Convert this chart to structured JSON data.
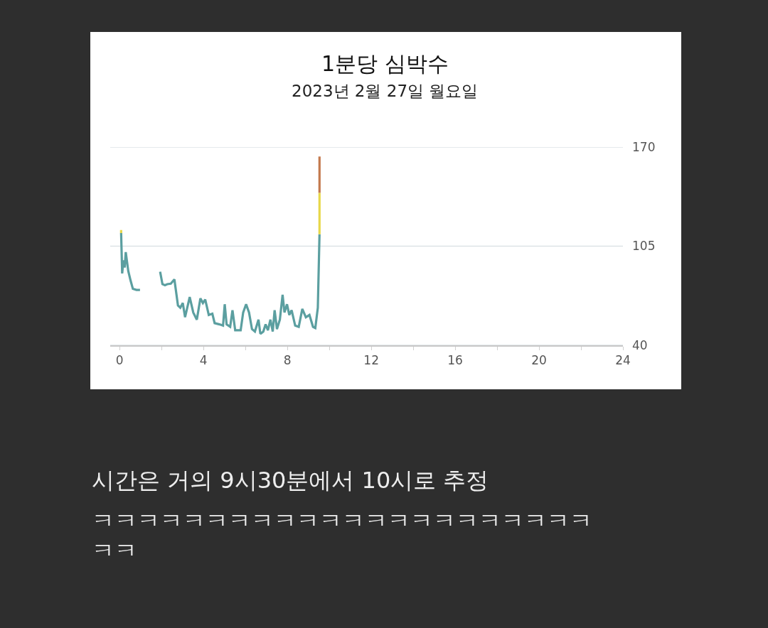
{
  "chart_data": {
    "type": "line",
    "title": "1분당 심박수",
    "subtitle": "2023년 2월 27일 월요일",
    "annotations": [
      "시간은 거의 9시30분에서 10시로 추정",
      "ㅋㅋㅋㅋㅋㅋㅋㅋㅋㅋㅋㅋㅋㅋㅋㅋㅋㅋㅋㅋㅋㅋㅋㅋ"
    ],
    "series": [
      {
        "color": "#5b9fa0",
        "x": [
          0.07,
          0.12,
          0.18,
          0.24,
          0.29,
          0.41,
          0.52,
          0.63,
          0.8,
          0.97,
          1.5,
          1.93,
          2.04,
          2.16,
          2.27,
          2.44,
          2.61,
          2.78,
          2.89,
          3.01,
          3.12,
          3.34,
          3.51,
          3.68,
          3.85,
          3.97,
          4.08,
          4.25,
          4.42,
          4.53,
          4.76,
          4.93,
          5.01,
          5.1,
          5.27,
          5.38,
          5.51,
          5.77,
          5.89,
          6.03,
          6.17,
          6.31,
          6.45,
          6.62,
          6.71,
          6.85,
          6.96,
          7.07,
          7.19,
          7.3,
          7.39,
          7.5,
          7.64,
          7.77,
          7.86,
          7.98,
          8.09,
          8.2,
          8.37,
          8.54,
          8.71,
          8.88,
          9.05,
          9.22,
          9.33,
          9.45,
          9.53
        ],
        "values": [
          113.6,
          87.1,
          95.7,
          91,
          101.1,
          88.7,
          82.5,
          77,
          76.3,
          76.3,
          null,
          88.2,
          80.1,
          79.4,
          80.1,
          80.4,
          83.2,
          66.1,
          64.6,
          67.7,
          58.4,
          71.6,
          61.5,
          56.8,
          70.8,
          67.7,
          70,
          59.9,
          60.7,
          54.5,
          53.7,
          52.9,
          66.9,
          53.7,
          52.1,
          63,
          49.8,
          49.8,
          61.5,
          66.9,
          61.5,
          50.6,
          49,
          56.8,
          47.5,
          49,
          53.7,
          49.8,
          56.8,
          49,
          63,
          50.6,
          56.8,
          73.1,
          61.5,
          66.9,
          59.9,
          63,
          52.9,
          52.1,
          63.8,
          58.4,
          59.9,
          52.1,
          51.3,
          64.6,
          112.8
        ]
      },
      {
        "color": "#e8d84a",
        "x": [
          0.07,
          0.07,
          1,
          9.53,
          9.53
        ],
        "values": [
          113.6,
          115.6,
          null,
          112.8,
          140
        ]
      },
      {
        "color": "#c47a4e",
        "x": [
          9.53,
          9.53
        ],
        "values": [
          140,
          163.8
        ]
      }
    ],
    "xlim": [
      -0.45,
      24
    ],
    "xticks": [
      0,
      {
        "value": 2,
        "label": null
      },
      4,
      {
        "value": 6,
        "label": null
      },
      8,
      {
        "value": 10,
        "label": null
      },
      12,
      {
        "value": 14,
        "label": null
      },
      16,
      {
        "value": 18,
        "label": null
      },
      20,
      {
        "value": 22,
        "label": null
      },
      24
    ],
    "ylim": [
      40,
      170
    ],
    "yticks": [
      40,
      105,
      170
    ],
    "grid": "y",
    "line_style": "solid",
    "marker": "none"
  }
}
